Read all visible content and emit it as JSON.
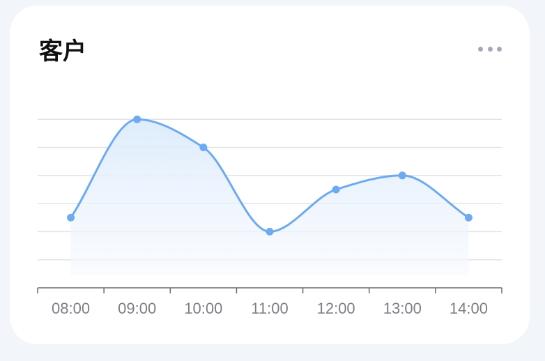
{
  "card": {
    "title": "客户",
    "more_icon": "more-horizontal-icon"
  },
  "colors": {
    "line": "#6eaaf0",
    "area_top": "#dcebfc",
    "grid": "#e2e3e6",
    "axis": "#6b6b6b",
    "tick_text": "#7d7f86"
  },
  "chart_data": {
    "type": "area",
    "title": "",
    "xlabel": "",
    "ylabel": "",
    "smooth": true,
    "grid": true,
    "y_axis_labels_visible": false,
    "ylim": [
      0,
      6
    ],
    "categories": [
      "08:00",
      "09:00",
      "10:00",
      "11:00",
      "12:00",
      "13:00",
      "14:00"
    ],
    "series": [
      {
        "values": [
          2.5,
          6,
          5,
          2,
          3.5,
          4,
          2.5
        ]
      }
    ]
  }
}
